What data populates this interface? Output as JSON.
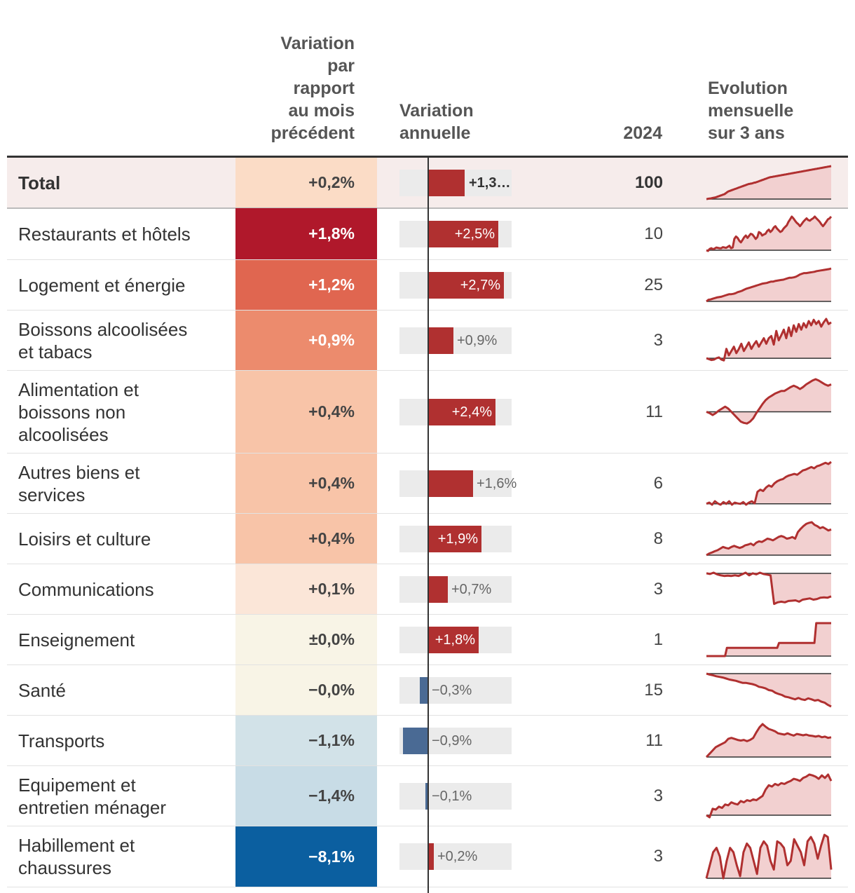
{
  "headers": {
    "month_change": [
      "Variation",
      "par",
      "rapport",
      "au mois",
      "précédent"
    ],
    "annual_change": [
      "Variation",
      "annuelle"
    ],
    "year": "2024",
    "evolution": [
      "Evolution",
      "mensuelle",
      "sur 3 ans"
    ]
  },
  "colors": {
    "positive_bar": "#b03030",
    "negative_bar": "#4a6a94",
    "bar_background": "#ebebeb",
    "spark_line": "#b03030",
    "spark_fill": "#f2d0d0",
    "total_row_bg": "#f6eceb"
  },
  "chart_data": {
    "type": "table",
    "annual_scale_max": 3.0,
    "rows": [
      {
        "name": "Total",
        "lines": [
          "Total"
        ],
        "month_label": "+0,2%",
        "month_value": 0.2,
        "month_color": "#fbdcc6",
        "month_text_color": "#444",
        "annual_label": "+1,3…",
        "annual_value": 1.3,
        "weight": "100",
        "total": true,
        "spark": [
          0,
          0.5,
          1,
          1.5,
          2,
          2,
          3,
          3.5,
          4,
          4.5,
          5,
          6,
          7,
          8,
          9,
          10,
          11,
          12,
          13,
          14,
          15,
          17,
          19,
          21,
          23,
          24,
          25,
          26,
          27,
          28,
          29,
          30,
          31,
          32,
          33,
          34,
          35,
          36,
          37,
          38,
          39,
          40,
          41,
          42,
          43,
          44,
          45,
          46,
          46,
          47,
          47,
          48,
          49,
          50,
          50,
          51,
          52,
          53,
          54,
          55,
          56,
          57,
          58,
          59,
          60,
          61,
          62,
          63,
          64,
          65,
          66,
          66.5,
          67,
          67.5,
          68,
          68.5,
          69,
          69.5,
          70,
          70.5,
          71,
          71.5,
          72,
          72.5,
          73,
          73.5,
          74,
          74.5,
          75,
          75.5,
          76,
          76.5,
          77,
          77.5,
          78,
          78.5,
          79,
          79.5,
          80,
          80.5,
          81,
          81.5,
          82,
          82.5,
          83,
          83.5,
          84,
          84.5,
          85,
          85.5,
          86,
          86.5,
          87,
          87.5,
          88,
          88.5,
          89,
          89.5,
          90,
          90.5,
          91,
          91.5,
          92,
          92.5,
          93,
          93.5,
          94,
          94.5,
          95,
          95.5,
          96,
          96.5,
          97,
          97.5,
          98,
          98.5,
          99,
          99.5,
          100
        ]
      },
      {
        "name": "Restaurants et hôtels",
        "lines": [
          "Restaurants et hôtels"
        ],
        "month_label": "+1,8%",
        "month_value": 1.8,
        "month_color": "#b0182b",
        "month_text_color": "#fff",
        "annual_label": "+2,5%",
        "annual_value": 2.5,
        "weight": "10",
        "spark": [
          2,
          0,
          6,
          8,
          5,
          7,
          10,
          9,
          8,
          8,
          11,
          10,
          9,
          12,
          15,
          8,
          10,
          35,
          42,
          38,
          30,
          25,
          32,
          40,
          45,
          38,
          44,
          50,
          48,
          42,
          35,
          40,
          55,
          52,
          45,
          48,
          50,
          58,
          62,
          55,
          60,
          68,
          72,
          65,
          60,
          55,
          58,
          65,
          70,
          75,
          85,
          92,
          100,
          95,
          88,
          82,
          78,
          72,
          78,
          85,
          90,
          95,
          90,
          88,
          92,
          95,
          100,
          95,
          90,
          85,
          78,
          72,
          78,
          85,
          92,
          95,
          100
        ]
      },
      {
        "name": "Logement et énergie",
        "lines": [
          "Logement et énergie"
        ],
        "month_label": "+1,2%",
        "month_value": 1.2,
        "month_color": "#e06650",
        "month_text_color": "#fff",
        "annual_label": "+2,7%",
        "annual_value": 2.7,
        "weight": "25",
        "spark": [
          0,
          5,
          6,
          8,
          10,
          12,
          13,
          14,
          16,
          18,
          20,
          22,
          22,
          23,
          25,
          28,
          30,
          32,
          35,
          38,
          40,
          42,
          44,
          46,
          48,
          50,
          52,
          54,
          55,
          56,
          58,
          60,
          60,
          62,
          63,
          64,
          65,
          66,
          68,
          70,
          72,
          72,
          73,
          75,
          78,
          82,
          84,
          86,
          86,
          87,
          88,
          89,
          90,
          92,
          93,
          94,
          95,
          96,
          97,
          98,
          100
        ]
      },
      {
        "name": "Boissons alcoolisées et tabacs",
        "lines": [
          "Boissons alcoolisées",
          "et tabacs"
        ],
        "month_label": "+0,9%",
        "month_value": 0.9,
        "month_color": "#ec8b6d",
        "month_text_color": "#fff",
        "annual_label": "+0,9%",
        "annual_value": 0.9,
        "weight": "3",
        "spark": [
          8,
          6,
          4,
          5,
          8,
          10,
          5,
          3,
          30,
          15,
          25,
          35,
          20,
          30,
          42,
          25,
          35,
          45,
          30,
          40,
          48,
          35,
          45,
          55,
          42,
          55,
          60,
          40,
          72,
          50,
          62,
          75,
          55,
          80,
          60,
          85,
          70,
          88,
          75,
          90,
          80,
          95,
          85,
          98,
          88,
          95,
          82,
          92,
          100,
          88,
          92
        ]
      },
      {
        "name": "Alimentation et boissons non alcoolisées",
        "lines": [
          "Alimentation et",
          "boissons non",
          "alcoolisées"
        ],
        "month_label": "+0,4%",
        "month_value": 0.4,
        "month_color": "#f8c4a8",
        "month_text_color": "#444",
        "annual_label": "+2,4%",
        "annual_value": 2.4,
        "weight": "11",
        "spark": [
          50,
          48,
          45,
          48,
          52,
          55,
          58,
          55,
          50,
          45,
          40,
          35,
          33,
          32,
          35,
          40,
          48,
          55,
          62,
          68,
          72,
          75,
          78,
          80,
          82,
          82,
          85,
          88,
          90,
          88,
          85,
          88,
          92,
          95,
          98,
          100,
          98,
          95,
          92,
          90,
          92
        ]
      },
      {
        "name": "Autres biens et services",
        "lines": [
          "Autres biens et",
          "services"
        ],
        "month_label": "+0,4%",
        "month_value": 0.4,
        "month_color": "#f8c4a8",
        "month_text_color": "#444",
        "annual_label": "+1,6%",
        "annual_value": 1.6,
        "weight": "6",
        "spark": [
          2,
          5,
          0,
          8,
          3,
          0,
          6,
          2,
          8,
          0,
          5,
          3,
          2,
          6,
          0,
          5,
          8,
          3,
          30,
          35,
          32,
          40,
          45,
          42,
          50,
          55,
          58,
          60,
          65,
          68,
          70,
          72,
          70,
          75,
          80,
          82,
          85,
          88,
          85,
          90,
          92,
          95,
          98,
          95,
          100
        ]
      },
      {
        "name": "Loisirs et culture",
        "lines": [
          "Loisirs et culture"
        ],
        "month_label": "+0,4%",
        "month_value": 0.4,
        "month_color": "#f8c4a8",
        "month_text_color": "#444",
        "annual_label": "+1,9%",
        "annual_value": 1.9,
        "weight": "8",
        "spark": [
          0,
          5,
          8,
          12,
          15,
          20,
          25,
          22,
          20,
          25,
          28,
          25,
          22,
          25,
          30,
          32,
          35,
          30,
          38,
          42,
          40,
          45,
          50,
          48,
          45,
          50,
          55,
          58,
          55,
          50,
          52,
          55,
          50,
          70,
          80,
          88,
          95,
          98,
          100,
          92,
          88,
          82,
          85,
          80,
          75,
          78
        ]
      },
      {
        "name": "Communications",
        "lines": [
          "Communications"
        ],
        "month_label": "+0,1%",
        "month_value": 0.1,
        "month_color": "#fbe6d8",
        "month_text_color": "#444",
        "annual_label": "+0,7%",
        "annual_value": 0.7,
        "weight": "3",
        "spark": [
          98,
          96,
          100,
          95,
          92,
          90,
          91,
          90,
          92,
          90,
          95,
          100,
          92,
          98,
          95,
          100,
          96,
          94,
          92,
          5,
          10,
          12,
          10,
          14,
          15,
          16,
          12,
          18,
          20,
          22,
          18,
          20,
          24,
          25,
          24,
          28
        ]
      },
      {
        "name": "Enseignement",
        "lines": [
          "Enseignement"
        ],
        "month_label": "±0,0%",
        "month_value": 0.0,
        "month_color": "#f8f4e6",
        "month_text_color": "#444",
        "annual_label": "+1,8%",
        "annual_value": 1.8,
        "weight": "1",
        "spark": [
          0,
          0,
          0,
          0,
          0,
          0,
          0,
          0,
          0,
          0,
          0,
          25,
          25,
          25,
          25,
          25,
          25,
          25,
          25,
          25,
          25,
          25,
          25,
          25,
          25,
          25,
          25,
          25,
          25,
          25,
          25,
          25,
          25,
          25,
          25,
          25,
          25,
          25,
          25,
          40,
          40,
          40,
          40,
          40,
          40,
          40,
          40,
          40,
          40,
          40,
          40,
          40,
          40,
          40,
          40,
          40,
          40,
          40,
          40,
          100,
          100,
          100,
          100,
          100,
          100,
          100,
          100,
          100
        ]
      },
      {
        "name": "Santé",
        "lines": [
          "Santé"
        ],
        "month_label": "−0,0%",
        "month_value": -0.0,
        "month_color": "#f8f4e6",
        "month_text_color": "#444",
        "annual_label": "−0,3%",
        "annual_value": -0.3,
        "weight": "15",
        "spark": [
          100,
          97,
          95,
          92,
          90,
          88,
          85,
          82,
          80,
          78,
          75,
          72,
          72,
          70,
          68,
          65,
          60,
          58,
          55,
          50,
          48,
          42,
          38,
          35,
          30,
          28,
          25,
          22,
          26,
          22,
          20,
          25,
          22,
          18,
          20,
          15,
          12,
          5,
          0
        ]
      },
      {
        "name": "Transports",
        "lines": [
          "Transports"
        ],
        "month_label": "−1,1%",
        "month_value": -1.1,
        "month_color": "#d2e2e8",
        "month_text_color": "#444",
        "annual_label": "−0,9%",
        "annual_value": -0.9,
        "weight": "11",
        "spark": [
          0,
          10,
          20,
          30,
          35,
          40,
          45,
          55,
          58,
          55,
          52,
          50,
          52,
          48,
          52,
          58,
          75,
          90,
          100,
          92,
          85,
          82,
          78,
          72,
          70,
          68,
          72,
          68,
          65,
          70,
          68,
          66,
          68,
          65,
          64,
          62,
          64,
          60,
          62,
          58,
          60
        ]
      },
      {
        "name": "Equipement et entretien ménager",
        "lines": [
          "Equipement et",
          "entretien ménager"
        ],
        "month_label": "−1,4%",
        "month_value": -1.4,
        "month_color": "#c8dce6",
        "month_text_color": "#444",
        "annual_label": "−0,1%",
        "annual_value": -0.1,
        "weight": "3",
        "spark": [
          5,
          0,
          20,
          18,
          25,
          22,
          30,
          28,
          35,
          32,
          30,
          38,
          35,
          40,
          38,
          42,
          40,
          45,
          50,
          65,
          75,
          72,
          78,
          75,
          80,
          78,
          82,
          85,
          90,
          88,
          85,
          92,
          95,
          100,
          98,
          95,
          90,
          98,
          92,
          100,
          85
        ]
      },
      {
        "name": "Habillement et chaussures",
        "lines": [
          "Habillement et",
          "chaussures"
        ],
        "month_label": "−8,1%",
        "month_value": -8.1,
        "month_color": "#0b5fa0",
        "month_text_color": "#fff",
        "annual_label": "+0,2%",
        "annual_value": 0.2,
        "weight": "3",
        "spark": [
          0,
          30,
          60,
          70,
          50,
          0,
          40,
          70,
          60,
          30,
          5,
          60,
          80,
          70,
          40,
          10,
          70,
          85,
          75,
          40,
          20,
          85,
          80,
          70,
          30,
          40,
          90,
          75,
          60,
          30,
          85,
          95,
          80,
          45,
          75,
          100,
          95,
          20
        ]
      }
    ]
  }
}
